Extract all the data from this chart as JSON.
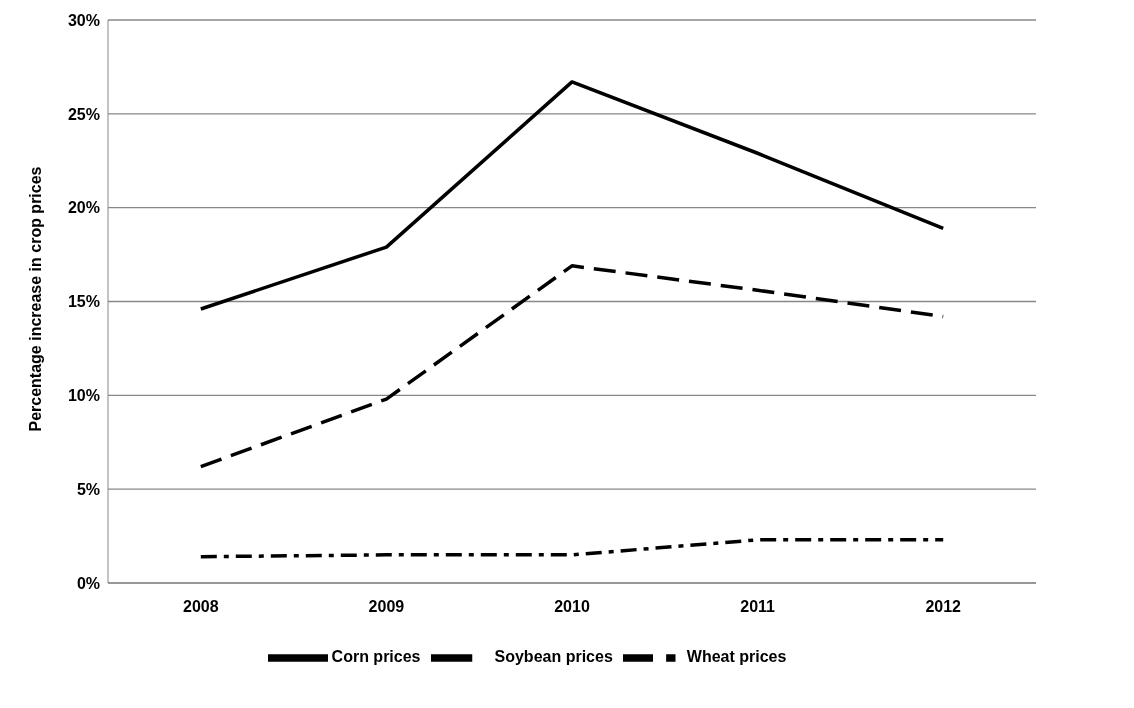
{
  "chart_data": {
    "type": "line",
    "ylabel": "Percentage increase in crop prices",
    "categories": [
      "2008",
      "2009",
      "2010",
      "2011",
      "2012"
    ],
    "series": [
      {
        "name": "Corn prices",
        "color": "#000000",
        "line_style": "solid",
        "values": [
          14.6,
          17.9,
          26.7,
          22.9,
          18.9
        ]
      },
      {
        "name": "Soybean prices",
        "color": "#000000",
        "line_style": "dashed",
        "values": [
          6.2,
          9.8,
          16.9,
          15.6,
          14.2
        ]
      },
      {
        "name": "Wheat prices",
        "color": "#000000",
        "line_style": "dashdot",
        "values": [
          1.4,
          1.5,
          1.5,
          2.3,
          2.3
        ]
      }
    ],
    "ylim": [
      0,
      30
    ],
    "yticks": [
      {
        "value": 0,
        "label": "0%"
      },
      {
        "value": 5,
        "label": "5%"
      },
      {
        "value": 10,
        "label": "10%"
      },
      {
        "value": 15,
        "label": "15%"
      },
      {
        "value": 20,
        "label": "20%"
      },
      {
        "value": 25,
        "label": "25%"
      },
      {
        "value": 30,
        "label": "30%"
      }
    ],
    "grid": "y",
    "legend": "bottom",
    "marker": "none"
  }
}
